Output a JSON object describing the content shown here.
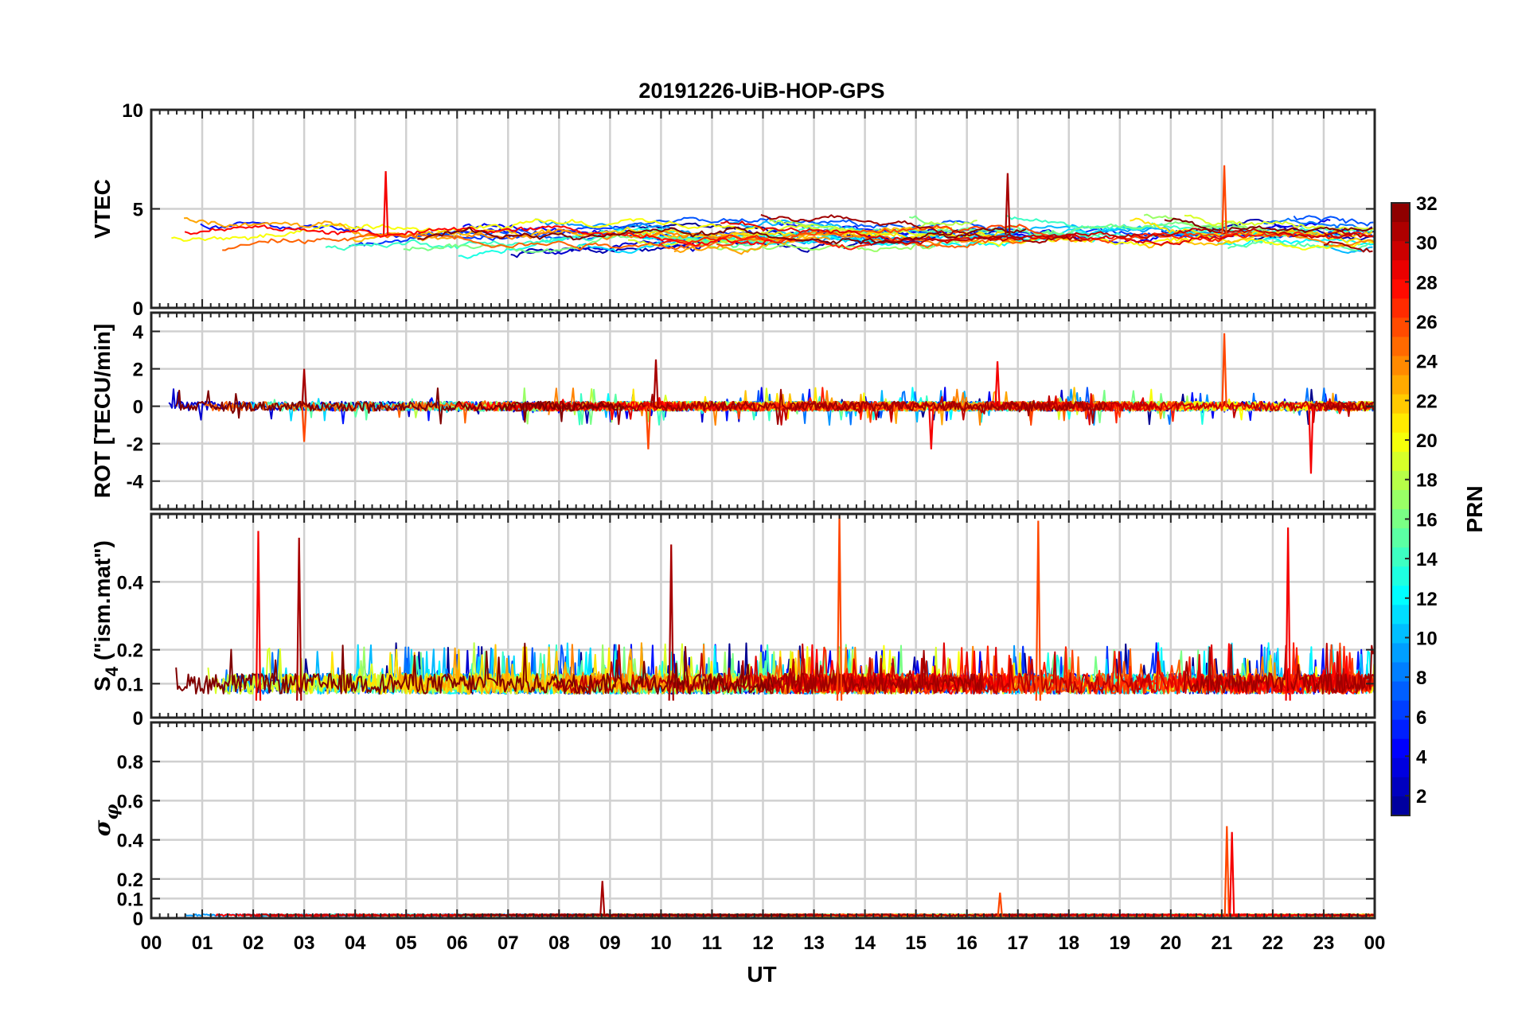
{
  "chart_data": {
    "type": "line",
    "title": "20191226-UiB-HOP-GPS",
    "xlabel": "UT",
    "x_ticks": [
      "00",
      "01",
      "02",
      "03",
      "04",
      "05",
      "06",
      "07",
      "08",
      "09",
      "10",
      "11",
      "12",
      "13",
      "14",
      "15",
      "16",
      "17",
      "18",
      "19",
      "20",
      "21",
      "22",
      "23",
      "00"
    ],
    "xlim": [
      0,
      24
    ],
    "grid": true,
    "panels": [
      {
        "ylabel": "VTEC",
        "ylim": [
          0,
          10
        ],
        "yticks": [
          0,
          5,
          10
        ],
        "baseline": 3.7,
        "spread": 1.1,
        "noise": 0.25,
        "style": "trend"
      },
      {
        "ylabel": "ROT [TECU/min]",
        "ylim": [
          -5.5,
          5
        ],
        "yticks": [
          -4,
          -2,
          0,
          2,
          4
        ],
        "baseline": 0,
        "spread": 0.1,
        "noise": 0.25,
        "style": "noise"
      },
      {
        "ylabel_main": "S",
        "ylabel_sub": "4",
        "ylabel_rest": " (\"ism.mat\")",
        "ylim": [
          0,
          0.6
        ],
        "yticks": [
          0,
          0.1,
          0.2,
          0.4
        ],
        "baseline": 0.1,
        "spread": 0.05,
        "noise": 0.06,
        "style": "scint"
      },
      {
        "ylabel_main": "σ",
        "ylabel_sub": "φ",
        "ylim": [
          0,
          1
        ],
        "yticks": [
          0,
          0.1,
          0.2,
          0.4,
          0.6,
          0.8
        ],
        "baseline": 0.02,
        "spread": 0.01,
        "noise": 0.01,
        "style": "sigma"
      }
    ],
    "events": [
      {
        "panel": 0,
        "x": 21.05,
        "y": 7.2
      },
      {
        "panel": 0,
        "x": 4.6,
        "y": 6.9
      },
      {
        "panel": 0,
        "x": 16.8,
        "y": 6.8
      },
      {
        "panel": 1,
        "x": 21.05,
        "y": 3.9
      },
      {
        "panel": 1,
        "x": 22.75,
        "y": -3.6
      },
      {
        "panel": 1,
        "x": 9.9,
        "y": 2.5
      },
      {
        "panel": 1,
        "x": 9.75,
        "y": -2.3
      },
      {
        "panel": 1,
        "x": 16.6,
        "y": 2.4
      },
      {
        "panel": 1,
        "x": 3.0,
        "y": 2.0
      },
      {
        "panel": 1,
        "x": 3.0,
        "y": -1.9
      },
      {
        "panel": 1,
        "x": 15.3,
        "y": -2.3
      },
      {
        "panel": 2,
        "x": 13.5,
        "y": 0.6
      },
      {
        "panel": 2,
        "x": 2.1,
        "y": 0.55
      },
      {
        "panel": 2,
        "x": 2.9,
        "y": 0.53
      },
      {
        "panel": 2,
        "x": 17.4,
        "y": 0.58
      },
      {
        "panel": 2,
        "x": 22.3,
        "y": 0.56
      },
      {
        "panel": 2,
        "x": 10.2,
        "y": 0.51
      },
      {
        "panel": 3,
        "x": 21.1,
        "y": 0.47
      },
      {
        "panel": 3,
        "x": 21.2,
        "y": 0.44
      },
      {
        "panel": 3,
        "x": 8.85,
        "y": 0.19
      },
      {
        "panel": 3,
        "x": 16.65,
        "y": 0.13
      }
    ],
    "colorbar": {
      "label": "PRN",
      "range": [
        1,
        32
      ],
      "ticks": [
        2,
        4,
        6,
        8,
        10,
        12,
        14,
        16,
        18,
        20,
        22,
        24,
        26,
        28,
        30,
        32
      ],
      "colormap": "jet",
      "jet_stops": [
        "#00008f",
        "#0000ff",
        "#00ffff",
        "#ffff00",
        "#ff0000",
        "#800000"
      ]
    },
    "series_count": 32
  }
}
